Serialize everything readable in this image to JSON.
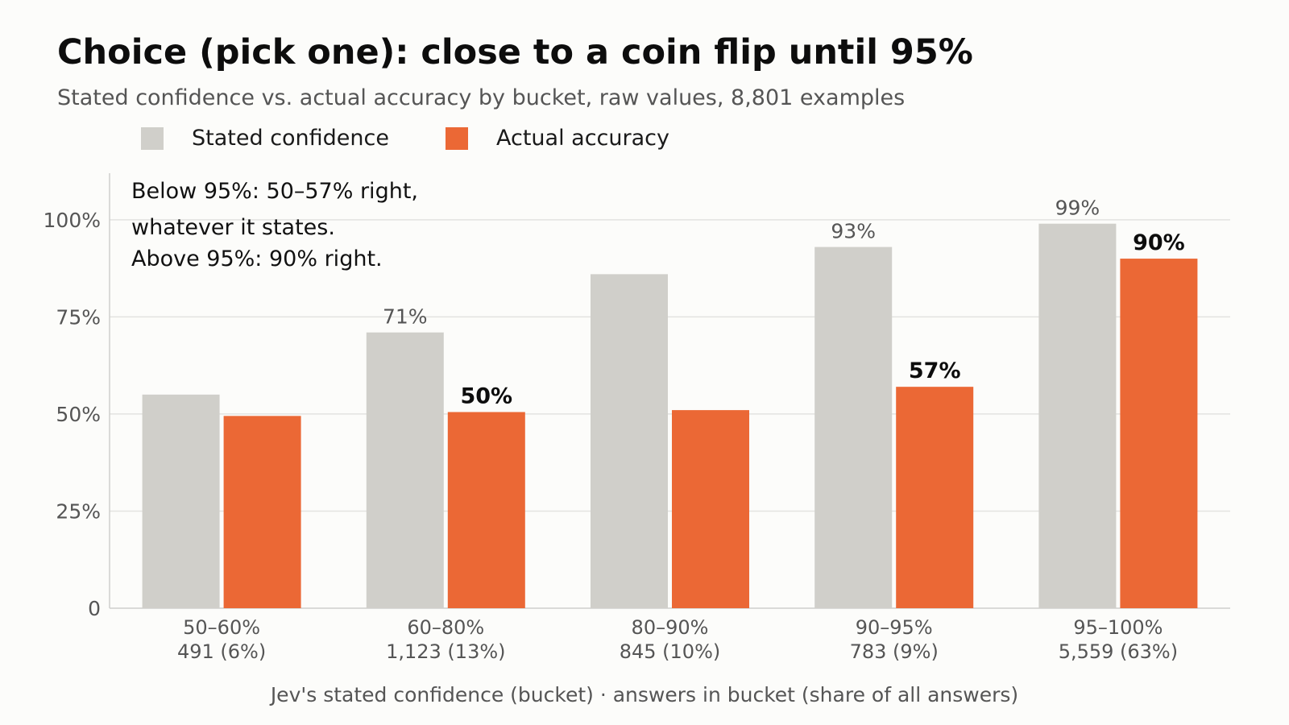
{
  "title": "Choice (pick one): close to a coin flip until 95%",
  "subtitle": "Stated confidence vs. actual accuracy by bucket, raw values, 8,801 examples",
  "colors": {
    "stated": "#d0cfca",
    "actual": "#eb6835",
    "grid": "#e3e3e0",
    "axis": "#cfcfcc",
    "text_muted": "#555555"
  },
  "chart_data": {
    "type": "bar",
    "title": "Choice (pick one): close to a coin flip until 95%",
    "subtitle": "Stated confidence vs. actual accuracy by bucket, raw values, 8,801 examples",
    "categories": [
      "50–60%",
      "60–80%",
      "80–90%",
      "90–95%",
      "95–100%"
    ],
    "category_counts": [
      "491 (6%)",
      "1,123 (13%)",
      "845 (10%)",
      "783 (9%)",
      "5,559 (63%)"
    ],
    "series": [
      {
        "name": "Stated confidence",
        "values": [
          55,
          71,
          86,
          93,
          99
        ],
        "labels": [
          "",
          "71%",
          "",
          "93%",
          "99%"
        ]
      },
      {
        "name": "Actual accuracy",
        "values": [
          49.5,
          50.5,
          51,
          57,
          90
        ],
        "labels": [
          "",
          "50%",
          "",
          "57%",
          "90%"
        ]
      }
    ],
    "xlabel": "Jev's stated confidence (bucket)  ·  answers in bucket (share of all answers)",
    "ylabel": "",
    "ylim": [
      0,
      112
    ],
    "yticks": [
      0,
      25,
      50,
      75,
      100
    ],
    "ytick_labels": [
      "0",
      "25%",
      "50%",
      "75%",
      "100%"
    ],
    "grid": true,
    "legend_position": "top-left",
    "annotation": [
      "Below 95%: 50–57% right,",
      "whatever it states.",
      "Above 95%: 90% right."
    ]
  }
}
